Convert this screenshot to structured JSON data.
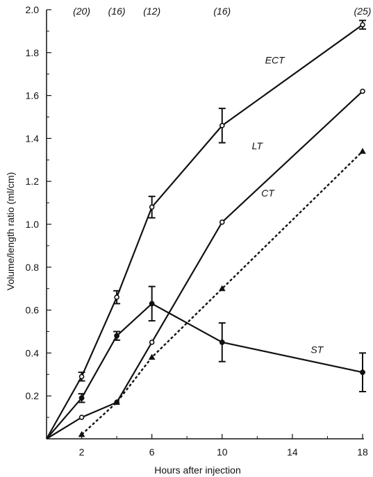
{
  "chart_data": {
    "type": "line",
    "xlabel": "Hours after injection",
    "ylabel": "Volume/length ratio (ml/cm)",
    "xlim": [
      0,
      18
    ],
    "ylim": [
      0,
      2.0
    ],
    "x_ticks": [
      2,
      6,
      10,
      14,
      18
    ],
    "x_tick_labels": [
      "2",
      "6",
      "10",
      "14",
      "18"
    ],
    "y_ticks": [
      0.2,
      0.4,
      0.6,
      0.8,
      1.0,
      1.2,
      1.4,
      1.6,
      1.8,
      2.0
    ],
    "y_tick_labels": [
      "0.2",
      "0.4",
      "0.6",
      "0.8",
      "1.0",
      "1.2",
      "1.4",
      "1.6",
      "1.8",
      "2.0"
    ],
    "n_labels": [
      {
        "x": 2,
        "text": "(20)"
      },
      {
        "x": 4,
        "text": "(16)"
      },
      {
        "x": 6,
        "text": "(12)"
      },
      {
        "x": 10,
        "text": "(16)"
      },
      {
        "x": 18,
        "text": "(25)"
      }
    ],
    "series": [
      {
        "name": "ECT",
        "style": "solid",
        "marker": "open-circle",
        "x": [
          0,
          2,
          4,
          6,
          10,
          18
        ],
        "y": [
          0,
          0.29,
          0.66,
          1.08,
          1.46,
          1.93
        ],
        "err": [
          0,
          0.02,
          0.03,
          0.05,
          0.08,
          0.02
        ],
        "label_at": [
          13,
          1.75
        ]
      },
      {
        "name": "LT",
        "style": "solid",
        "marker": "open-circle",
        "x": [
          0,
          2,
          4,
          6,
          10,
          18
        ],
        "y": [
          0,
          0.1,
          0.17,
          0.45,
          1.01,
          1.62
        ],
        "err": [
          0,
          0,
          0,
          0,
          0,
          0
        ],
        "label_at": [
          12,
          1.35
        ]
      },
      {
        "name": "CT",
        "style": "dashed",
        "marker": "triangle",
        "x": [
          2,
          4,
          6,
          10,
          18
        ],
        "y": [
          0.02,
          0.17,
          0.38,
          0.7,
          1.34
        ],
        "err": [
          0,
          0,
          0,
          0,
          0
        ],
        "label_at": [
          12.6,
          1.13
        ]
      },
      {
        "name": "ST",
        "style": "solid",
        "marker": "filled-circle",
        "x": [
          0,
          2,
          4,
          6,
          10,
          18
        ],
        "y": [
          0,
          0.19,
          0.48,
          0.63,
          0.45,
          0.31
        ],
        "err": [
          0,
          0.02,
          0.02,
          0.08,
          0.09,
          0.09
        ],
        "label_at": [
          15.4,
          0.4
        ]
      }
    ],
    "grid": false,
    "legend": "none"
  }
}
